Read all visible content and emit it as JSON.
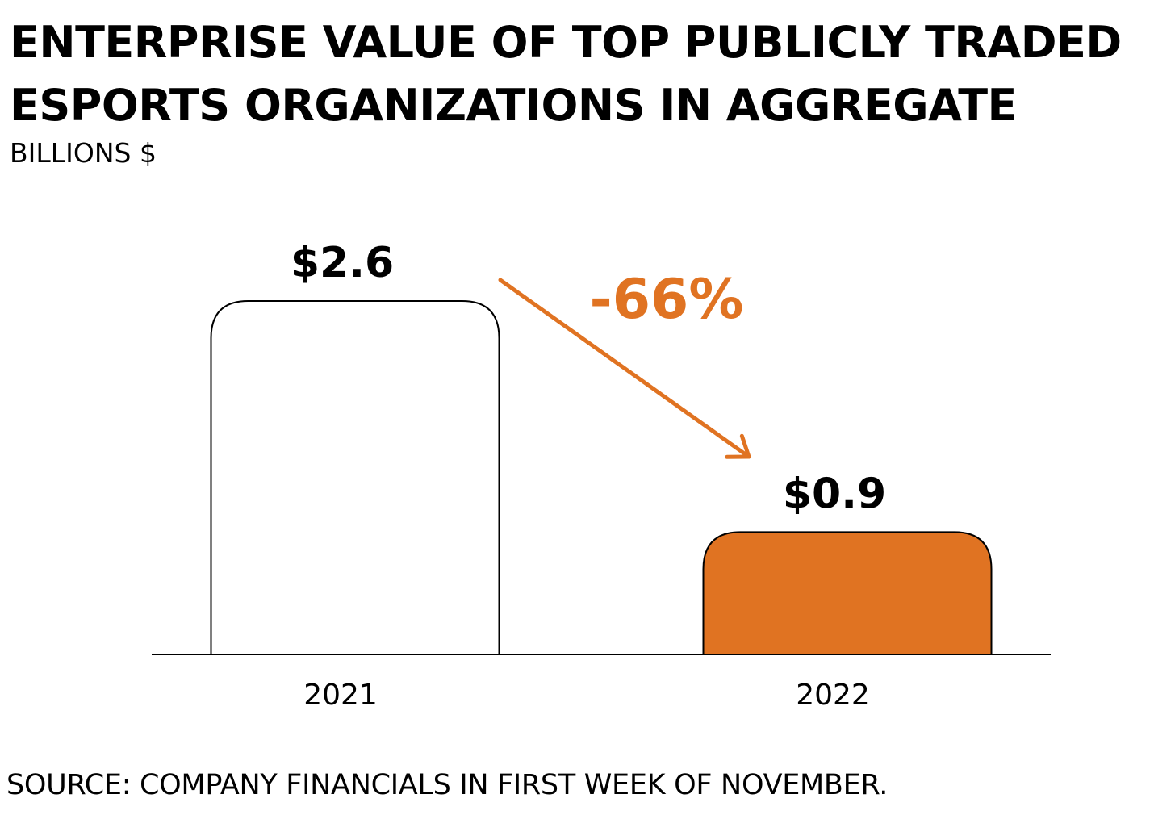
{
  "header": {
    "title_line1": "ENTERPRISE VALUE OF TOP PUBLICLY TRADED",
    "title_line2": "ESPORTS ORGANIZATIONS IN AGGREGATE",
    "subtitle": "BILLIONS $"
  },
  "footer": {
    "source": "SOURCE: COMPANY FINANCIALS IN FIRST WEEK OF NOVEMBER."
  },
  "colors": {
    "accent": "#e07322",
    "bar_outline": "#000000",
    "bar_2021_fill": "#ffffff",
    "bar_2022_fill": "#e07322",
    "axis": "#000000"
  },
  "chart_data": {
    "type": "bar",
    "title": "ENTERPRISE VALUE OF TOP PUBLICLY TRADED ESPORTS ORGANIZATIONS IN AGGREGATE",
    "subtitle": "BILLIONS $",
    "categories": [
      "2021",
      "2022"
    ],
    "values": [
      2.6,
      0.9
    ],
    "value_labels": [
      "$2.6",
      "$0.9"
    ],
    "ylim": [
      0,
      2.6
    ],
    "grid": false,
    "annotation": {
      "text": "-66%",
      "type": "arrow",
      "from": "2021",
      "to": "2022"
    }
  }
}
